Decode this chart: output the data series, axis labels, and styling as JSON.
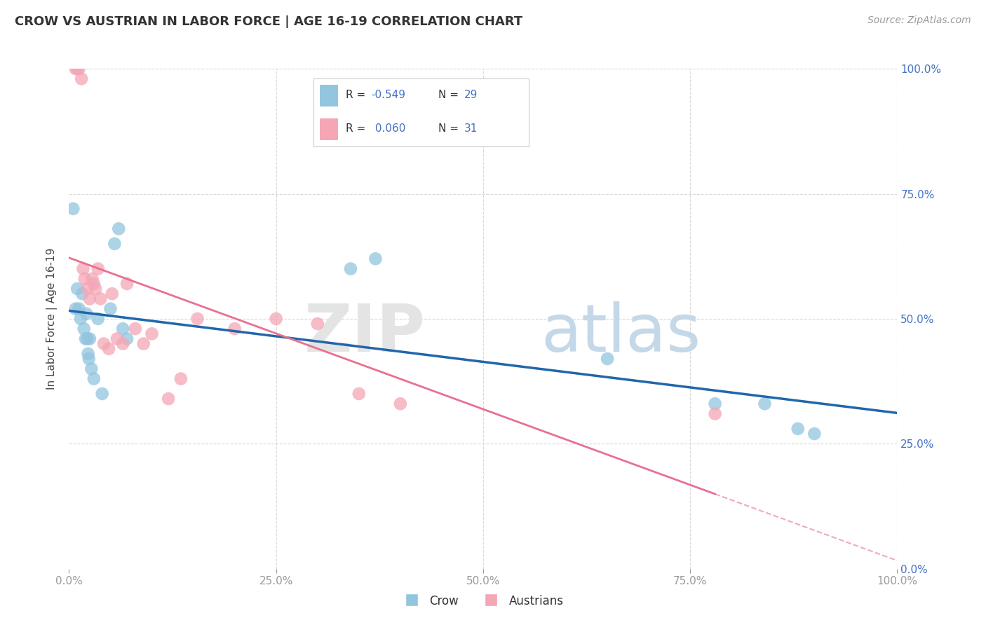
{
  "title": "CROW VS AUSTRIAN IN LABOR FORCE | AGE 16-19 CORRELATION CHART",
  "source": "Source: ZipAtlas.com",
  "ylabel": "In Labor Force | Age 16-19",
  "xlim": [
    0.0,
    1.0
  ],
  "ylim": [
    0.0,
    1.0
  ],
  "crow_color": "#92c5de",
  "austrian_color": "#f4a6b5",
  "crow_line_color": "#2166ac",
  "austrian_line_color": "#e87090",
  "label_color_blue": "#4472c4",
  "grid_color": "#d8d8d8",
  "background_color": "#ffffff",
  "legend_R_crow": "-0.549",
  "legend_N_crow": "29",
  "legend_R_austrian": "0.060",
  "legend_N_austrian": "31",
  "crow_x": [
    0.005,
    0.008,
    0.01,
    0.012,
    0.014,
    0.016,
    0.018,
    0.02,
    0.021,
    0.022,
    0.023,
    0.024,
    0.025,
    0.027,
    0.03,
    0.035,
    0.04,
    0.05,
    0.055,
    0.06,
    0.065,
    0.07,
    0.34,
    0.37,
    0.65,
    0.78,
    0.84,
    0.88,
    0.9
  ],
  "crow_y": [
    0.72,
    0.52,
    0.56,
    0.52,
    0.5,
    0.55,
    0.48,
    0.46,
    0.51,
    0.46,
    0.43,
    0.42,
    0.46,
    0.4,
    0.38,
    0.5,
    0.35,
    0.52,
    0.65,
    0.68,
    0.48,
    0.46,
    0.6,
    0.62,
    0.42,
    0.33,
    0.33,
    0.28,
    0.27
  ],
  "austrian_x": [
    0.008,
    0.01,
    0.012,
    0.015,
    0.017,
    0.019,
    0.022,
    0.025,
    0.028,
    0.03,
    0.032,
    0.035,
    0.038,
    0.042,
    0.048,
    0.052,
    0.058,
    0.065,
    0.07,
    0.08,
    0.09,
    0.1,
    0.12,
    0.135,
    0.155,
    0.2,
    0.25,
    0.3,
    0.35,
    0.4,
    0.78
  ],
  "austrian_y": [
    1.0,
    1.0,
    1.0,
    0.98,
    0.6,
    0.58,
    0.56,
    0.54,
    0.58,
    0.57,
    0.56,
    0.6,
    0.54,
    0.45,
    0.44,
    0.55,
    0.46,
    0.45,
    0.57,
    0.48,
    0.45,
    0.47,
    0.34,
    0.38,
    0.5,
    0.48,
    0.5,
    0.49,
    0.35,
    0.33,
    0.31
  ]
}
